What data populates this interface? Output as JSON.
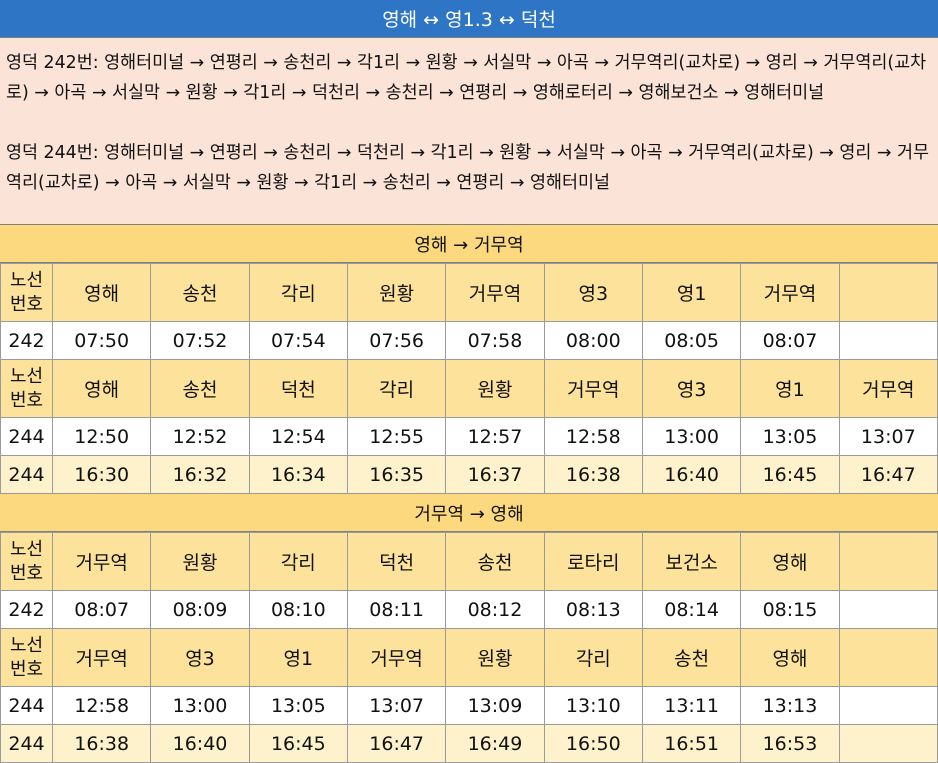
{
  "title": "영해 ↔ 영1.3 ↔ 덕천",
  "routes_info": [
    "영덕 242번: 영해터미널 → 연평리  → 송천리 → 각1리 → 원황 → 서실막 → 아곡 → 거무역리(교차로) → 영리 → 거무역리(교차로) → 아곡 → 서실막 → 원황 → 각1리 → 덕천리 → 송천리 → 연평리 → 영해로터리 → 영해보건소 → 영해터미널",
    "영덕 244번: 영해터미널 → 연평리  → 송천리 → 덕천리 → 각1리 → 원황 → 서실막 → 아곡 → 거무역리(교차로) → 영리 → 거무역리(교차로) → 아곡 → 서실막 → 원황 → 각1리 → 송천리 → 연평리 → 영해터미널"
  ],
  "sections": [
    {
      "title": "영해 → 거무역",
      "blocks": [
        {
          "route_label": "노선 번호",
          "stops": [
            "영해",
            "송천",
            "각리",
            "원황",
            "거무역",
            "영3",
            "영1",
            "거무역",
            ""
          ],
          "rows": [
            {
              "route": "242",
              "times": [
                "07:50",
                "07:52",
                "07:54",
                "07:56",
                "07:58",
                "08:00",
                "08:05",
                "08:07",
                ""
              ],
              "style": "white"
            }
          ]
        },
        {
          "route_label": "노선 번호",
          "stops": [
            "영해",
            "송천",
            "덕천",
            "각리",
            "원황",
            "거무역",
            "영3",
            "영1",
            "거무역"
          ],
          "rows": [
            {
              "route": "244",
              "times": [
                "12:50",
                "12:52",
                "12:54",
                "12:55",
                "12:57",
                "12:58",
                "13:00",
                "13:05",
                "13:07"
              ],
              "style": "white"
            },
            {
              "route": "244",
              "times": [
                "16:30",
                "16:32",
                "16:34",
                "16:35",
                "16:37",
                "16:38",
                "16:40",
                "16:45",
                "16:47"
              ],
              "style": "cream"
            }
          ]
        }
      ]
    },
    {
      "title": "거무역 → 영해",
      "blocks": [
        {
          "route_label": "노선 번호",
          "stops": [
            "거무역",
            "원황",
            "각리",
            "덕천",
            "송천",
            "로타리",
            "보건소",
            "영해",
            ""
          ],
          "rows": [
            {
              "route": "242",
              "times": [
                "08:07",
                "08:09",
                "08:10",
                "08:11",
                "08:12",
                "08:13",
                "08:14",
                "08:15",
                ""
              ],
              "style": "white"
            }
          ]
        },
        {
          "route_label": "노선 번호",
          "stops": [
            "거무역",
            "영3",
            "영1",
            "거무역",
            "원황",
            "각리",
            "송천",
            "영해",
            ""
          ],
          "rows": [
            {
              "route": "244",
              "times": [
                "12:58",
                "13:00",
                "13:05",
                "13:07",
                "13:09",
                "13:10",
                "13:11",
                "13:13",
                ""
              ],
              "style": "white"
            },
            {
              "route": "244",
              "times": [
                "16:38",
                "16:40",
                "16:45",
                "16:47",
                "16:49",
                "16:50",
                "16:51",
                "16:53",
                ""
              ],
              "style": "cream"
            }
          ]
        }
      ]
    }
  ]
}
